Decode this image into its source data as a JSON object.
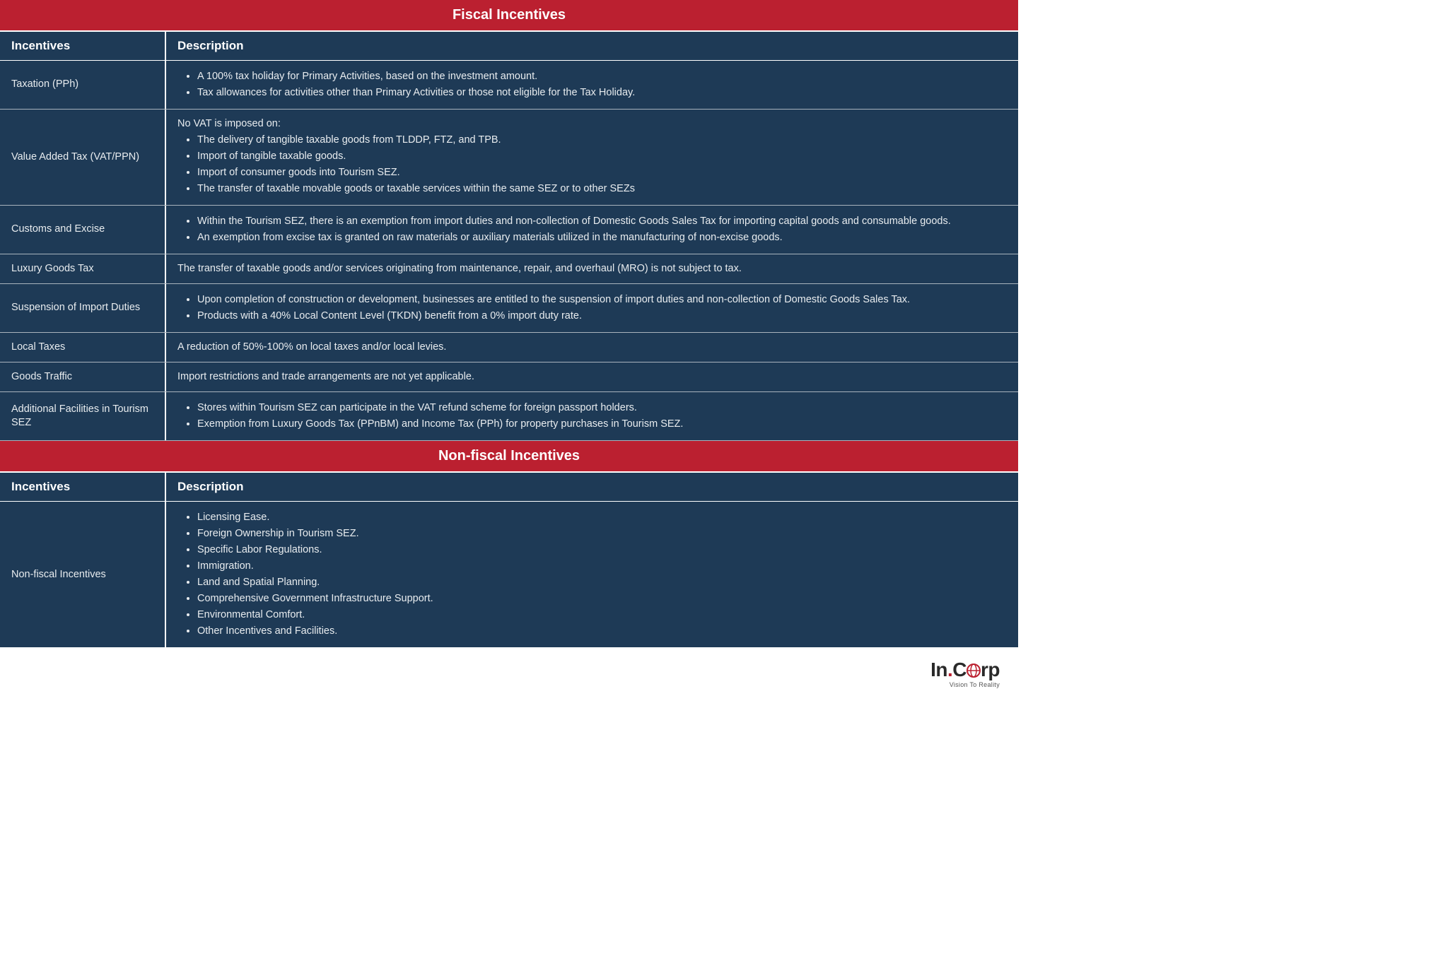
{
  "colors": {
    "header_red": "#bb2030",
    "row_navy": "#1e3a56",
    "text_white": "#ffffff",
    "text_light": "#e8ecef",
    "divider": "#a9b3bd"
  },
  "typography": {
    "section_header_fontsize": 20,
    "column_header_fontsize": 17,
    "cell_fontsize": 14.5,
    "font_family": "Segoe UI"
  },
  "layout": {
    "incentive_col_width": 235,
    "total_width": 1440
  },
  "sections": [
    {
      "title": "Fiscal Incentives",
      "columns": [
        "Incentives",
        "Description"
      ],
      "rows": [
        {
          "incentive": "Taxation (PPh)",
          "desc_type": "list",
          "items": [
            "A 100% tax holiday for Primary Activities, based on the investment amount.",
            "Tax allowances for activities other than Primary Activities or those not eligible for the Tax Holiday."
          ]
        },
        {
          "incentive": "Value Added Tax (VAT/PPN)",
          "desc_type": "intro_list",
          "intro": "No VAT is imposed on:",
          "items": [
            "The delivery of tangible taxable goods from TLDDP, FTZ, and TPB.",
            "Import of tangible taxable goods.",
            "Import of consumer goods into Tourism SEZ.",
            "The transfer of taxable movable goods or taxable services within the same SEZ or to other SEZs"
          ]
        },
        {
          "incentive": "Customs and Excise",
          "desc_type": "list",
          "items": [
            "Within the Tourism SEZ, there is an exemption from import duties and non-collection of Domestic Goods Sales Tax for importing capital goods and consumable goods.",
            "An exemption from excise tax is granted on raw materials or auxiliary materials utilized in the manufacturing of non-excise goods."
          ]
        },
        {
          "incentive": "Luxury Goods Tax",
          "desc_type": "text",
          "text": "The transfer of taxable goods and/or services originating from maintenance, repair, and overhaul (MRO) is not subject to tax."
        },
        {
          "incentive": "Suspension of Import Duties",
          "desc_type": "list",
          "items": [
            "Upon completion of construction or development, businesses are entitled to the suspension of import duties and non-collection of Domestic Goods Sales Tax.",
            "Products with a 40% Local Content Level (TKDN) benefit from a 0% import duty rate."
          ]
        },
        {
          "incentive": "Local Taxes",
          "desc_type": "text",
          "text": "A reduction of 50%-100% on local taxes and/or local levies."
        },
        {
          "incentive": "Goods Traffic",
          "desc_type": "text",
          "text": "Import restrictions and trade arrangements are not yet applicable."
        },
        {
          "incentive": "Additional Facilities in Tourism SEZ",
          "desc_type": "list",
          "items": [
            "Stores within Tourism SEZ can participate in the VAT refund scheme for foreign passport holders.",
            "Exemption from Luxury Goods Tax (PPnBM) and Income Tax (PPh) for property purchases in Tourism SEZ."
          ]
        }
      ]
    },
    {
      "title": "Non-fiscal Incentives",
      "columns": [
        "Incentives",
        "Description"
      ],
      "rows": [
        {
          "incentive": "Non-fiscal Incentives",
          "desc_type": "list",
          "items": [
            "Licensing Ease.",
            "Foreign Ownership in Tourism SEZ.",
            "Specific Labor Regulations.",
            "Immigration.",
            "Land and Spatial Planning.",
            "Comprehensive Government Infrastructure Support.",
            "Environmental Comfort.",
            "Other Incentives and Facilities."
          ]
        }
      ]
    }
  ],
  "logo": {
    "text_pre": "In",
    "text_post": "C",
    "text_end": "rp",
    "tagline": "Vision To Reality",
    "globe_color": "#bb2030"
  }
}
